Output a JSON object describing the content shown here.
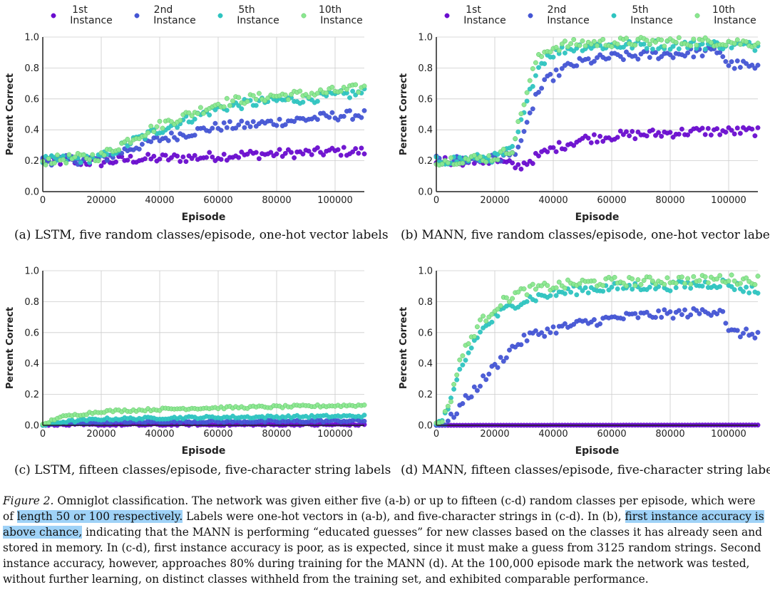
{
  "legend_labels": [
    [
      "1st",
      "Instance"
    ],
    [
      "2nd",
      "Instance"
    ],
    [
      "5th",
      "Instance"
    ],
    [
      "10th",
      "Instance"
    ]
  ],
  "series_colors": [
    "#6a0dcf",
    "#4455d4",
    "#2ec4c0",
    "#8ae88f"
  ],
  "chart_data": [
    {
      "type": "scatter",
      "panel": "a",
      "caption": "(a) LSTM, five random classes/episode, one-hot vector labels",
      "xlabel": "Episode",
      "ylabel": "Percent Correct",
      "xlim": [
        0,
        110000
      ],
      "ylim": [
        0,
        1.0
      ],
      "xticks": [
        "0",
        "20000",
        "40000",
        "60000",
        "80000",
        "100000"
      ],
      "yticks": [
        "0.0",
        "0.2",
        "0.4",
        "0.6",
        "0.8",
        "1.0"
      ],
      "grid": true,
      "legend": "top",
      "series": [
        {
          "name": "1st Instance",
          "points": [
            [
              0,
              0.2
            ],
            [
              20000,
              0.19
            ],
            [
              30000,
              0.21
            ],
            [
              50000,
              0.22
            ],
            [
              70000,
              0.24
            ],
            [
              90000,
              0.25
            ],
            [
              100000,
              0.26
            ],
            [
              110000,
              0.26
            ]
          ]
        },
        {
          "name": "2nd Instance",
          "points": [
            [
              0,
              0.2
            ],
            [
              20000,
              0.21
            ],
            [
              30000,
              0.28
            ],
            [
              40000,
              0.34
            ],
            [
              50000,
              0.38
            ],
            [
              60000,
              0.42
            ],
            [
              70000,
              0.43
            ],
            [
              80000,
              0.45
            ],
            [
              90000,
              0.47
            ],
            [
              100000,
              0.49
            ],
            [
              110000,
              0.5
            ]
          ]
        },
        {
          "name": "5th Instance",
          "points": [
            [
              0,
              0.2
            ],
            [
              20000,
              0.22
            ],
            [
              30000,
              0.32
            ],
            [
              40000,
              0.4
            ],
            [
              50000,
              0.47
            ],
            [
              60000,
              0.54
            ],
            [
              70000,
              0.57
            ],
            [
              80000,
              0.59
            ],
            [
              90000,
              0.6
            ],
            [
              100000,
              0.62
            ],
            [
              110000,
              0.64
            ]
          ]
        },
        {
          "name": "10th Instance",
          "points": [
            [
              0,
              0.2
            ],
            [
              20000,
              0.23
            ],
            [
              30000,
              0.34
            ],
            [
              40000,
              0.43
            ],
            [
              50000,
              0.5
            ],
            [
              60000,
              0.57
            ],
            [
              70000,
              0.6
            ],
            [
              80000,
              0.62
            ],
            [
              90000,
              0.63
            ],
            [
              100000,
              0.65
            ],
            [
              110000,
              0.67
            ]
          ]
        }
      ]
    },
    {
      "type": "scatter",
      "panel": "b",
      "caption": "(b) MANN, five random classes/episode, one-hot vector labels",
      "xlabel": "Episode",
      "ylabel": "Percent Correct",
      "xlim": [
        0,
        110000
      ],
      "ylim": [
        0,
        1.0
      ],
      "xticks": [
        "0",
        "20000",
        "40000",
        "60000",
        "80000",
        "100000"
      ],
      "yticks": [
        "0.0",
        "0.2",
        "0.4",
        "0.6",
        "0.8",
        "1.0"
      ],
      "grid": true,
      "legend": "top",
      "series": [
        {
          "name": "1st Instance",
          "points": [
            [
              0,
              0.2
            ],
            [
              20000,
              0.2
            ],
            [
              28000,
              0.16
            ],
            [
              32000,
              0.2
            ],
            [
              40000,
              0.28
            ],
            [
              50000,
              0.34
            ],
            [
              60000,
              0.36
            ],
            [
              70000,
              0.37
            ],
            [
              80000,
              0.38
            ],
            [
              90000,
              0.39
            ],
            [
              100000,
              0.39
            ],
            [
              110000,
              0.39
            ]
          ]
        },
        {
          "name": "2nd Instance",
          "points": [
            [
              0,
              0.2
            ],
            [
              20000,
              0.21
            ],
            [
              26000,
              0.24
            ],
            [
              30000,
              0.36
            ],
            [
              34000,
              0.62
            ],
            [
              38000,
              0.72
            ],
            [
              44000,
              0.8
            ],
            [
              50000,
              0.84
            ],
            [
              60000,
              0.87
            ],
            [
              70000,
              0.88
            ],
            [
              80000,
              0.89
            ],
            [
              90000,
              0.9
            ],
            [
              97000,
              0.91
            ],
            [
              100000,
              0.82
            ],
            [
              105000,
              0.82
            ],
            [
              110000,
              0.79
            ]
          ]
        },
        {
          "name": "5th Instance",
          "points": [
            [
              0,
              0.2
            ],
            [
              20000,
              0.22
            ],
            [
              26000,
              0.27
            ],
            [
              30000,
              0.5
            ],
            [
              34000,
              0.78
            ],
            [
              38000,
              0.88
            ],
            [
              44000,
              0.92
            ],
            [
              50000,
              0.94
            ],
            [
              70000,
              0.95
            ],
            [
              90000,
              0.95
            ],
            [
              100000,
              0.95
            ],
            [
              110000,
              0.94
            ]
          ]
        },
        {
          "name": "10th Instance",
          "points": [
            [
              0,
              0.2
            ],
            [
              20000,
              0.22
            ],
            [
              26000,
              0.28
            ],
            [
              30000,
              0.58
            ],
            [
              34000,
              0.84
            ],
            [
              38000,
              0.92
            ],
            [
              44000,
              0.95
            ],
            [
              50000,
              0.96
            ],
            [
              70000,
              0.97
            ],
            [
              90000,
              0.97
            ],
            [
              100000,
              0.97
            ],
            [
              110000,
              0.96
            ]
          ]
        }
      ]
    },
    {
      "type": "scatter",
      "panel": "c",
      "caption": "(c) LSTM, fifteen classes/episode, five-character string labels",
      "xlabel": "Episode",
      "ylabel": "Percent Correct",
      "xlim": [
        0,
        110000
      ],
      "ylim": [
        0,
        1.0
      ],
      "xticks": [
        "0",
        "20000",
        "40000",
        "60000",
        "80000",
        "100000"
      ],
      "yticks": [
        "0.0",
        "0.2",
        "0.4",
        "0.6",
        "0.8",
        "1.0"
      ],
      "grid": true,
      "legend": "top",
      "series": [
        {
          "name": "1st Instance",
          "points": [
            [
              0,
              0.0
            ],
            [
              5000,
              0.002
            ],
            [
              110000,
              0.004
            ]
          ]
        },
        {
          "name": "2nd Instance",
          "points": [
            [
              0,
              0.0
            ],
            [
              5000,
              0.01
            ],
            [
              20000,
              0.02
            ],
            [
              50000,
              0.025
            ],
            [
              80000,
              0.025
            ],
            [
              110000,
              0.03
            ]
          ]
        },
        {
          "name": "5th Instance",
          "points": [
            [
              0,
              0.0
            ],
            [
              5000,
              0.02
            ],
            [
              20000,
              0.04
            ],
            [
              50000,
              0.05
            ],
            [
              80000,
              0.055
            ],
            [
              110000,
              0.06
            ]
          ]
        },
        {
          "name": "10th Instance",
          "points": [
            [
              0,
              0.0
            ],
            [
              5000,
              0.05
            ],
            [
              20000,
              0.09
            ],
            [
              50000,
              0.11
            ],
            [
              80000,
              0.12
            ],
            [
              110000,
              0.13
            ]
          ]
        }
      ]
    },
    {
      "type": "scatter",
      "panel": "d",
      "caption": "(d) MANN, fifteen classes/episode, five-character string labels",
      "xlabel": "Episode",
      "ylabel": "Percent Correct",
      "xlim": [
        0,
        110000
      ],
      "ylim": [
        0,
        1.0
      ],
      "xticks": [
        "0",
        "20000",
        "40000",
        "60000",
        "80000",
        "100000"
      ],
      "yticks": [
        "0.0",
        "0.2",
        "0.4",
        "0.6",
        "0.8",
        "1.0"
      ],
      "grid": true,
      "legend": "top",
      "series": [
        {
          "name": "1st Instance",
          "points": [
            [
              0,
              0.0
            ],
            [
              110000,
              0.002
            ]
          ]
        },
        {
          "name": "2nd Instance",
          "points": [
            [
              0,
              0.0
            ],
            [
              4000,
              0.02
            ],
            [
              8000,
              0.12
            ],
            [
              14000,
              0.25
            ],
            [
              20000,
              0.38
            ],
            [
              26000,
              0.5
            ],
            [
              32000,
              0.58
            ],
            [
              40000,
              0.62
            ],
            [
              50000,
              0.66
            ],
            [
              60000,
              0.69
            ],
            [
              70000,
              0.71
            ],
            [
              80000,
              0.72
            ],
            [
              90000,
              0.73
            ],
            [
              98000,
              0.75
            ],
            [
              100000,
              0.6
            ],
            [
              110000,
              0.59
            ]
          ]
        },
        {
          "name": "5th Instance",
          "points": [
            [
              0,
              0.0
            ],
            [
              4000,
              0.08
            ],
            [
              8000,
              0.35
            ],
            [
              14000,
              0.58
            ],
            [
              20000,
              0.7
            ],
            [
              26000,
              0.78
            ],
            [
              32000,
              0.82
            ],
            [
              40000,
              0.85
            ],
            [
              50000,
              0.88
            ],
            [
              60000,
              0.89
            ],
            [
              70000,
              0.9
            ],
            [
              80000,
              0.9
            ],
            [
              90000,
              0.91
            ],
            [
              98000,
              0.92
            ],
            [
              104000,
              0.89
            ],
            [
              110000,
              0.87
            ]
          ]
        },
        {
          "name": "10th Instance",
          "points": [
            [
              0,
              0.0
            ],
            [
              4000,
              0.1
            ],
            [
              8000,
              0.42
            ],
            [
              14000,
              0.64
            ],
            [
              20000,
              0.76
            ],
            [
              26000,
              0.84
            ],
            [
              32000,
              0.88
            ],
            [
              40000,
              0.9
            ],
            [
              50000,
              0.92
            ],
            [
              60000,
              0.93
            ],
            [
              70000,
              0.93
            ],
            [
              80000,
              0.94
            ],
            [
              90000,
              0.94
            ],
            [
              98000,
              0.95
            ],
            [
              104000,
              0.94
            ],
            [
              110000,
              0.94
            ]
          ]
        }
      ]
    }
  ],
  "figure_caption": {
    "lead": "Figure 2.",
    "part1": " Omniglot classification. The network was given either five (a-b) or up to fifteen (c-d) random classes per episode, which were of ",
    "hl1": "length 50 or 100 respectively.",
    "part2": " Labels were one-hot vectors in (a-b), and five-character strings in (c-d). In (b), ",
    "hl2": "first instance accuracy is above chance,",
    "part3": " indicating that the MANN is performing “educated guesses” for new classes based on the classes it has already seen and stored in memory. In (c-d), first instance accuracy is poor, as is expected, since it must make a guess from 3125 random strings. Second instance accuracy, however, approaches 80% during training for the MANN (d). At the 100,000 episode mark the network was tested, without further learning, on distinct classes withheld from the training set, and exhibited comparable performance."
  }
}
